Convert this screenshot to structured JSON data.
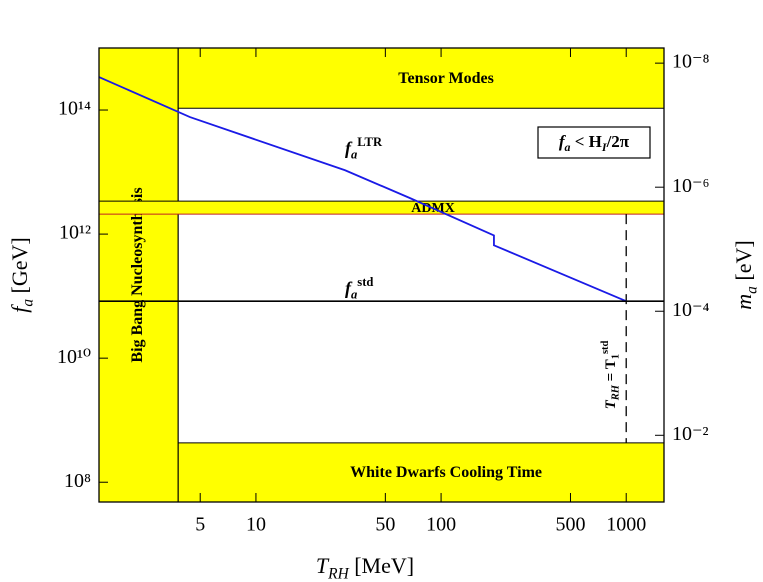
{
  "chart_data": {
    "type": "line",
    "xscale": "log",
    "yscale": "log",
    "y2scale": "log",
    "xlabel": [
      {
        "text": "T"
      },
      {
        "text": "RH",
        "pos": "sub"
      },
      {
        "text": " [MeV]"
      }
    ],
    "ylabel": [
      {
        "text": "f"
      },
      {
        "text": "a",
        "pos": "sub"
      },
      {
        "text": " [GeV]"
      }
    ],
    "y2label": [
      {
        "text": "m"
      },
      {
        "text": "a",
        "pos": "sub"
      },
      {
        "text": " [eV]"
      }
    ],
    "xlim": [
      1.42,
      1600
    ],
    "ylim": [
      48000000.0,
      1000000000000000.0
    ],
    "y2lim": [
      0.119,
      5.7e-09
    ],
    "xticks": [
      5,
      10,
      50,
      100,
      500,
      1000
    ],
    "yticks": [
      {
        "value": 100000000.0,
        "label": "10⁸"
      },
      {
        "value": 10000000000.0,
        "label": "10¹⁰"
      },
      {
        "value": 1000000000000.0,
        "label": "10¹²"
      },
      {
        "value": 100000000000000.0,
        "label": "10¹⁴"
      }
    ],
    "y2ticks": [
      {
        "value": 1e-08,
        "label": "10⁻⁸"
      },
      {
        "value": 1e-06,
        "label": "10⁻⁶"
      },
      {
        "value": 0.0001,
        "label": "10⁻⁴"
      },
      {
        "value": 0.01,
        "label": "10⁻²"
      }
    ],
    "bands": [
      {
        "label": "Tensor Modes",
        "orient": "h",
        "from": 107000000000000.0,
        "to": 1000000000000000.0,
        "color": "#ffff00"
      },
      {
        "label": "White Dwarfs Cooling Time",
        "orient": "h",
        "from": 48000000.0,
        "to": 430000000.0,
        "color": "#ffff00"
      },
      {
        "label": "Big Bang Nucleosynthesis",
        "orient": "v",
        "from": 1.42,
        "to": 3.8,
        "color": "#ffff00"
      },
      {
        "label": "ADMX",
        "orient": "h",
        "from": 2100000000000.0,
        "to": 3400000000000.0,
        "color": "#ffff00",
        "edge": "#c02020"
      }
    ],
    "series": [
      {
        "label": [
          {
            "text": "f"
          },
          {
            "text": "a",
            "pos": "sub"
          },
          {
            "text": "LTR",
            "pos": "sup"
          }
        ],
        "x": [
          1.42,
          4.4,
          30.3,
          68,
          193,
          193,
          1000
        ],
        "values": [
          340000000000000.0,
          77000000000000.0,
          10700000000000.0,
          3800000000000.0,
          950000000000.0,
          660000000000.0,
          83000000000.0
        ],
        "color": "#1a1ae6"
      },
      {
        "label": [
          {
            "text": "f"
          },
          {
            "text": "a",
            "pos": "sub"
          },
          {
            "text": "std",
            "pos": "sup"
          }
        ],
        "x": [
          1.42,
          1600
        ],
        "values": [
          83000000000.0,
          83000000000.0
        ],
        "color": "#000000"
      }
    ],
    "vlines": [
      {
        "x": 1000,
        "from": 430000000.0,
        "to": 2100000000000.0,
        "dashed": true,
        "label": [
          {
            "text": "T"
          },
          {
            "text": "RH",
            "pos": "sub"
          },
          {
            "text": " = T"
          },
          {
            "text": "1",
            "pos": "sub"
          },
          {
            "text": "std",
            "pos": "sup"
          }
        ]
      }
    ],
    "annotation": [
      {
        "text": "f"
      },
      {
        "text": "a",
        "pos": "sub"
      },
      {
        "text": " < H"
      },
      {
        "text": "I",
        "pos": "sub"
      },
      {
        "text": "/2π"
      }
    ]
  }
}
